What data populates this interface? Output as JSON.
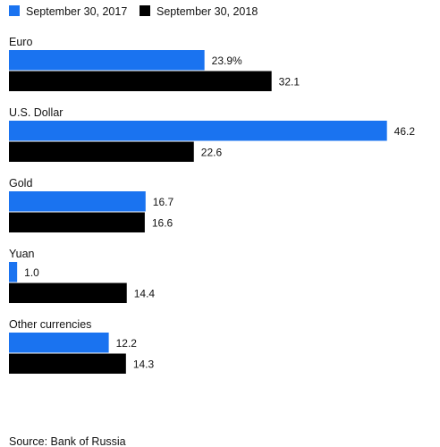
{
  "chart_data": {
    "type": "bar",
    "orientation": "horizontal",
    "categories": [
      "Euro",
      "U.S. Dollar",
      "Gold",
      "Yuan",
      "Other currencies"
    ],
    "series": [
      {
        "name": "September 30, 2017",
        "color": "#1a73f0",
        "values": [
          23.9,
          46.2,
          16.7,
          1.0,
          12.2
        ],
        "labels": [
          "23.9%",
          "46.2",
          "16.7",
          "1.0",
          "12.2"
        ]
      },
      {
        "name": "September 30, 2018",
        "color": "#000000",
        "values": [
          32.1,
          22.6,
          16.6,
          14.4,
          14.3
        ],
        "labels": [
          "32.1",
          "22.6",
          "16.6",
          "14.4",
          "14.3"
        ]
      }
    ],
    "xlim": [
      0,
      47
    ],
    "legend_position": "top-left",
    "grid": false
  },
  "source": "Source: Bank of Russia"
}
